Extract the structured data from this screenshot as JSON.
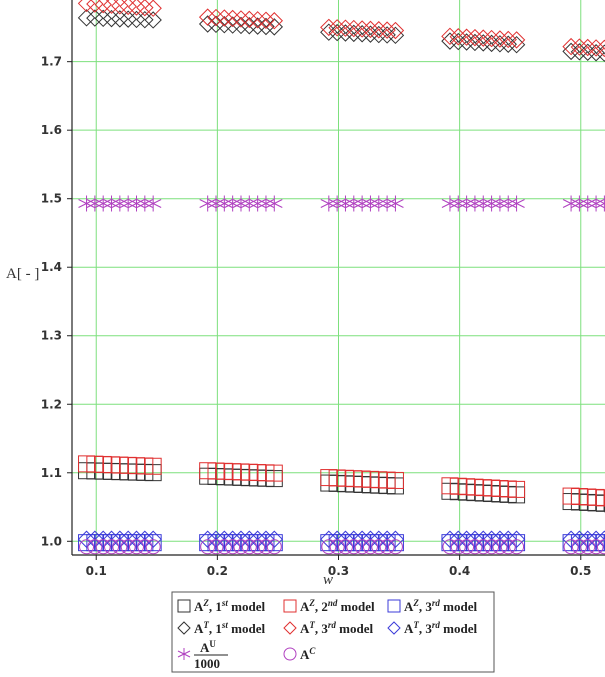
{
  "chart_data": {
    "type": "scatter",
    "xlabel": "w",
    "ylabel": "A[ - ]",
    "xlim": [
      0.08,
      0.52
    ],
    "ylim": [
      0.98,
      1.79
    ],
    "x_ticks": [
      "0.1",
      "0.2",
      "0.3",
      "0.4",
      "0.5"
    ],
    "y_ticks": [
      "1.0",
      "1.1",
      "1.2",
      "1.3",
      "1.4",
      "1.5",
      "1.6",
      "1.7"
    ],
    "grid": true,
    "legend_position": "bottom",
    "series": [
      {
        "name": "A^Z, 1st model",
        "marker": "square",
        "color": "#333333",
        "x": [
          0.1,
          0.2,
          0.3,
          0.4,
          0.5
        ],
        "y": [
          1.103,
          1.095,
          1.085,
          1.073,
          1.058
        ]
      },
      {
        "name": "A^Z, 2nd model",
        "marker": "square",
        "color": "#e03030",
        "x": [
          0.1,
          0.2,
          0.3,
          0.4,
          0.5
        ],
        "y": [
          1.113,
          1.103,
          1.093,
          1.081,
          1.066
        ]
      },
      {
        "name": "A^Z, 3rd model",
        "marker": "square",
        "color": "#3b3bd9",
        "x": [
          0.1,
          0.2,
          0.3,
          0.4,
          0.5
        ],
        "y": [
          0.998,
          0.998,
          0.998,
          0.998,
          0.998
        ]
      },
      {
        "name": "A^T, 1st model",
        "marker": "diamond",
        "color": "#333333",
        "x": [
          0.1,
          0.2,
          0.3,
          0.4,
          0.5
        ],
        "y": [
          1.764,
          1.755,
          1.743,
          1.73,
          1.715
        ]
      },
      {
        "name": "A^T, 3rd model",
        "marker": "diamond",
        "color": "#e03030",
        "x": [
          0.1,
          0.2,
          0.3,
          0.4,
          0.5
        ],
        "y": [
          1.785,
          1.765,
          1.75,
          1.737,
          1.722
        ]
      },
      {
        "name": "A^T, 3rd model",
        "marker": "diamond",
        "color": "#3b3bd9",
        "x": [
          0.1,
          0.2,
          0.3,
          0.4,
          0.5
        ],
        "y": [
          1.003,
          1.003,
          1.003,
          1.003,
          1.003
        ]
      },
      {
        "name": "A^U / 1000",
        "marker": "asterisk",
        "color": "#b040c0",
        "x": [
          0.1,
          0.2,
          0.3,
          0.4,
          0.5
        ],
        "y": [
          1.493,
          1.493,
          1.493,
          1.493,
          1.493
        ]
      },
      {
        "name": "A^C",
        "marker": "circle",
        "color": "#b040c0",
        "x": [
          0.1,
          0.2,
          0.3,
          0.4,
          0.5
        ],
        "y": [
          0.992,
          0.992,
          0.992,
          0.992,
          0.992
        ]
      }
    ],
    "legend": [
      {
        "sym": "A",
        "sup": "Z",
        "tail": ", 1",
        "ord": "st",
        "end": " model",
        "marker": "square",
        "color": "#333333"
      },
      {
        "sym": "A",
        "sup": "Z",
        "tail": ", 2",
        "ord": "nd",
        "end": " model",
        "marker": "square",
        "color": "#e03030"
      },
      {
        "sym": "A",
        "sup": "Z",
        "tail": ", 3",
        "ord": "rd",
        "end": " model",
        "marker": "square",
        "color": "#3b3bd9"
      },
      {
        "sym": "A",
        "sup": "T",
        "tail": ", 1",
        "ord": "st",
        "end": " model",
        "marker": "diamond",
        "color": "#333333"
      },
      {
        "sym": "A",
        "sup": "T",
        "tail": ", 3",
        "ord": "rd",
        "end": " model",
        "marker": "diamond",
        "color": "#e03030"
      },
      {
        "sym": "A",
        "sup": "T",
        "tail": ", 3",
        "ord": "rd",
        "end": " model",
        "marker": "diamond",
        "color": "#3b3bd9"
      },
      {
        "frac_num": "A",
        "frac_sup": "U",
        "frac_den": "1000",
        "marker": "asterisk",
        "color": "#b040c0"
      },
      {
        "sym": "A",
        "sup": "C",
        "tail": "",
        "ord": "",
        "end": "",
        "marker": "circle",
        "color": "#b040c0"
      }
    ]
  }
}
